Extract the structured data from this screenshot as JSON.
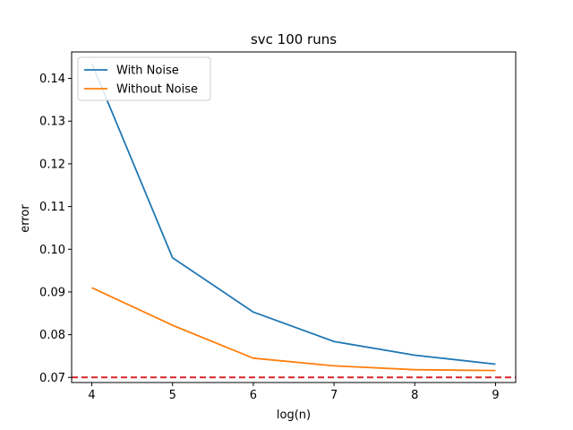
{
  "chart_data": {
    "type": "line",
    "title": "svc 100 runs",
    "xlabel": "log(n)",
    "ylabel": "error",
    "x": [
      4,
      5,
      6,
      7,
      8,
      9
    ],
    "xlim": [
      3.75,
      9.25
    ],
    "ylim": [
      0.0688,
      0.1462
    ],
    "xticks": [
      4,
      5,
      6,
      7,
      8,
      9
    ],
    "yticks": [
      0.07,
      0.08,
      0.09,
      0.1,
      0.11,
      0.12,
      0.13,
      0.14
    ],
    "grid": false,
    "legend_position": "upper left",
    "series": [
      {
        "name": "With Noise",
        "color": "#1f77b4",
        "values": [
          0.1435,
          0.098,
          0.0853,
          0.0784,
          0.0752,
          0.0731
        ]
      },
      {
        "name": "Without Noise",
        "color": "#ff7f0e",
        "values": [
          0.091,
          0.0822,
          0.0745,
          0.0727,
          0.0718,
          0.0716
        ]
      }
    ],
    "reference_line": {
      "y": 0.07,
      "color": "#d62728",
      "style": "dashed"
    }
  }
}
